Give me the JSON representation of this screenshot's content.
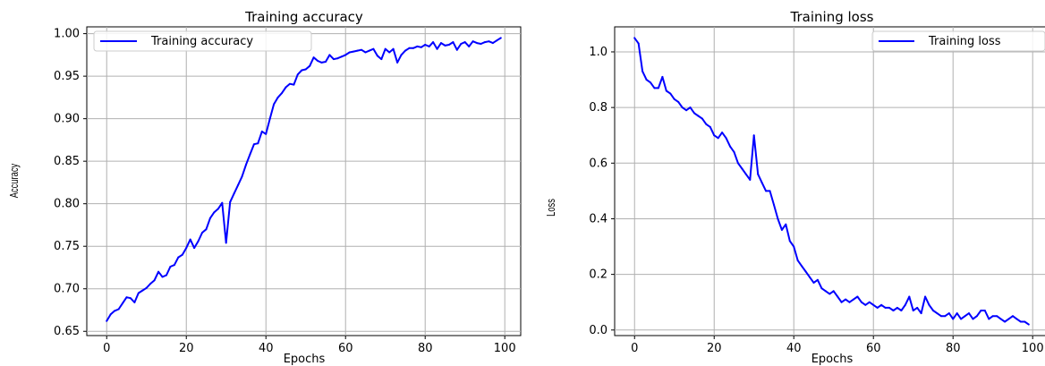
{
  "chart_data": [
    {
      "type": "line",
      "title": "Training accuracy",
      "xlabel": "Epochs",
      "ylabel": "Accuracy",
      "xlim": [
        -5,
        104
      ],
      "ylim": [
        0.645,
        1.008
      ],
      "xticks": [
        0,
        20,
        40,
        60,
        80,
        100
      ],
      "xtick_labels": [
        "0",
        "20",
        "40",
        "60",
        "80",
        "100"
      ],
      "yticks": [
        0.65,
        0.7,
        0.75,
        0.8,
        0.85,
        0.9,
        0.95,
        1.0
      ],
      "ytick_labels": [
        "0.65",
        "0.70",
        "0.75",
        "0.80",
        "0.85",
        "0.90",
        "0.95",
        "1.00"
      ],
      "grid": true,
      "legend": "top-left",
      "series": [
        {
          "name": "Training accuracy",
          "color": "#0000ff",
          "x": [
            0,
            1,
            2,
            3,
            4,
            5,
            6,
            7,
            8,
            9,
            10,
            11,
            12,
            13,
            14,
            15,
            16,
            17,
            18,
            19,
            20,
            21,
            22,
            23,
            24,
            25,
            26,
            27,
            28,
            29,
            30,
            31,
            32,
            33,
            34,
            35,
            36,
            37,
            38,
            39,
            40,
            41,
            42,
            43,
            44,
            45,
            46,
            47,
            48,
            49,
            50,
            51,
            52,
            53,
            54,
            55,
            56,
            57,
            58,
            59,
            60,
            61,
            62,
            63,
            64,
            65,
            66,
            67,
            68,
            69,
            70,
            71,
            72,
            73,
            74,
            75,
            76,
            77,
            78,
            79,
            80,
            81,
            82,
            83,
            84,
            85,
            86,
            87,
            88,
            89,
            90,
            91,
            92,
            93,
            94,
            95,
            96,
            97,
            98,
            99
          ],
          "y": [
            0.662,
            0.67,
            0.674,
            0.676,
            0.683,
            0.69,
            0.689,
            0.684,
            0.695,
            0.698,
            0.701,
            0.706,
            0.71,
            0.72,
            0.714,
            0.716,
            0.726,
            0.728,
            0.737,
            0.74,
            0.748,
            0.758,
            0.748,
            0.756,
            0.766,
            0.77,
            0.783,
            0.79,
            0.794,
            0.801,
            0.754,
            0.802,
            0.812,
            0.822,
            0.832,
            0.846,
            0.858,
            0.87,
            0.871,
            0.885,
            0.882,
            0.9,
            0.917,
            0.925,
            0.93,
            0.937,
            0.941,
            0.94,
            0.952,
            0.957,
            0.958,
            0.962,
            0.972,
            0.968,
            0.966,
            0.967,
            0.975,
            0.97,
            0.971,
            0.973,
            0.975,
            0.978,
            0.979,
            0.98,
            0.981,
            0.978,
            0.98,
            0.982,
            0.974,
            0.97,
            0.982,
            0.978,
            0.982,
            0.966,
            0.975,
            0.98,
            0.983,
            0.983,
            0.985,
            0.984,
            0.987,
            0.985,
            0.99,
            0.982,
            0.989,
            0.986,
            0.987,
            0.99,
            0.981,
            0.988,
            0.99,
            0.985,
            0.991,
            0.989,
            0.988,
            0.99,
            0.991,
            0.989,
            0.992,
            0.995
          ]
        }
      ]
    },
    {
      "type": "line",
      "title": "Training loss",
      "xlabel": "Epochs",
      "ylabel": "Loss",
      "xlim": [
        -5,
        104
      ],
      "ylim": [
        -0.02,
        1.09
      ],
      "xticks": [
        0,
        20,
        40,
        60,
        80,
        100
      ],
      "xtick_labels": [
        "0",
        "20",
        "40",
        "60",
        "80",
        "100"
      ],
      "yticks": [
        0.0,
        0.2,
        0.4,
        0.6,
        0.8,
        1.0
      ],
      "ytick_labels": [
        "0.0",
        "0.2",
        "0.4",
        "0.6",
        "0.8",
        "1.0"
      ],
      "grid": true,
      "legend": "top-right",
      "series": [
        {
          "name": "Training loss",
          "color": "#0000ff",
          "x": [
            0,
            1,
            2,
            3,
            4,
            5,
            6,
            7,
            8,
            9,
            10,
            11,
            12,
            13,
            14,
            15,
            16,
            17,
            18,
            19,
            20,
            21,
            22,
            23,
            24,
            25,
            26,
            27,
            28,
            29,
            30,
            31,
            32,
            33,
            34,
            35,
            36,
            37,
            38,
            39,
            40,
            41,
            42,
            43,
            44,
            45,
            46,
            47,
            48,
            49,
            50,
            51,
            52,
            53,
            54,
            55,
            56,
            57,
            58,
            59,
            60,
            61,
            62,
            63,
            64,
            65,
            66,
            67,
            68,
            69,
            70,
            71,
            72,
            73,
            74,
            75,
            76,
            77,
            78,
            79,
            80,
            81,
            82,
            83,
            84,
            85,
            86,
            87,
            88,
            89,
            90,
            91,
            92,
            93,
            94,
            95,
            96,
            97,
            98,
            99
          ],
          "y": [
            1.05,
            1.03,
            0.93,
            0.9,
            0.89,
            0.87,
            0.87,
            0.91,
            0.86,
            0.85,
            0.83,
            0.82,
            0.8,
            0.79,
            0.8,
            0.78,
            0.77,
            0.76,
            0.74,
            0.73,
            0.7,
            0.69,
            0.71,
            0.69,
            0.66,
            0.64,
            0.6,
            0.58,
            0.56,
            0.54,
            0.7,
            0.56,
            0.53,
            0.5,
            0.5,
            0.45,
            0.4,
            0.36,
            0.38,
            0.32,
            0.3,
            0.25,
            0.23,
            0.21,
            0.19,
            0.17,
            0.18,
            0.15,
            0.14,
            0.13,
            0.14,
            0.12,
            0.1,
            0.11,
            0.1,
            0.11,
            0.12,
            0.1,
            0.09,
            0.1,
            0.09,
            0.08,
            0.09,
            0.08,
            0.08,
            0.07,
            0.08,
            0.07,
            0.09,
            0.12,
            0.07,
            0.08,
            0.06,
            0.12,
            0.09,
            0.07,
            0.06,
            0.05,
            0.05,
            0.06,
            0.04,
            0.06,
            0.04,
            0.05,
            0.06,
            0.04,
            0.05,
            0.07,
            0.07,
            0.04,
            0.05,
            0.05,
            0.04,
            0.03,
            0.04,
            0.05,
            0.04,
            0.03,
            0.03,
            0.02
          ]
        }
      ]
    }
  ]
}
